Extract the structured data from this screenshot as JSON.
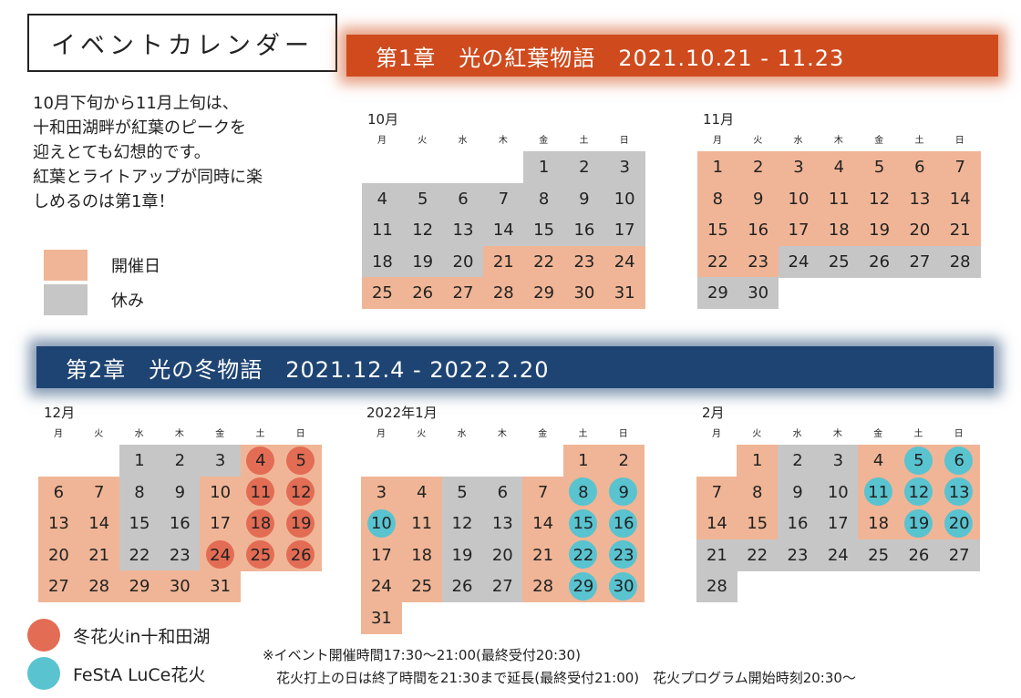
{
  "title": "イベントカレンダー",
  "intro_lines": [
    "10月下旬から11月上旬は、",
    "十和田湖畔が紅葉のピークを",
    "迎えとても幻想的です。",
    "紅葉とライトアップが同時に楽",
    "しめるのは第1章！"
  ],
  "legend": {
    "event": "開催日",
    "off": "休み"
  },
  "colors": {
    "event": "#f0b596",
    "off": "#c6c6c6",
    "winter_fireworks": "#e36c54",
    "festa_fireworks": "#59c3d0",
    "chapter1": "#cf4b1e",
    "chapter2": "#1e4473"
  },
  "weekdays": [
    "月",
    "火",
    "水",
    "木",
    "金",
    "土",
    "日"
  ],
  "chapter1": {
    "label": "第1章　光の紅葉物語　2021.10.21 - 11.23"
  },
  "chapter2": {
    "label": "第2章　光の冬物語　2021.12.4 - 2022.2.20"
  },
  "months": [
    {
      "name": "10月",
      "start": 4,
      "days": 31,
      "event_days": [
        21,
        22,
        23,
        24,
        25,
        26,
        27,
        28,
        29,
        30,
        31
      ],
      "red": [],
      "cyan": []
    },
    {
      "name": "11月",
      "start": 0,
      "days": 30,
      "event_days": [
        1,
        2,
        3,
        4,
        5,
        6,
        7,
        8,
        9,
        10,
        11,
        12,
        13,
        14,
        15,
        16,
        17,
        18,
        19,
        20,
        21,
        22,
        23
      ],
      "red": [],
      "cyan": []
    },
    {
      "name": "12月",
      "start": 2,
      "days": 31,
      "event_days": [
        4,
        5,
        6,
        7,
        10,
        11,
        12,
        13,
        14,
        17,
        18,
        19,
        20,
        21,
        24,
        25,
        26,
        27,
        28,
        29,
        30,
        31
      ],
      "red": [
        4,
        5,
        11,
        12,
        18,
        19,
        24,
        25,
        26
      ],
      "cyan": []
    },
    {
      "name": "2022年1月",
      "start": 5,
      "days": 31,
      "event_days": [
        1,
        2,
        3,
        4,
        7,
        8,
        9,
        10,
        11,
        14,
        15,
        16,
        17,
        18,
        21,
        22,
        23,
        24,
        25,
        28,
        29,
        30,
        31
      ],
      "red": [],
      "cyan": [
        8,
        9,
        10,
        15,
        16,
        22,
        23,
        29,
        30
      ]
    },
    {
      "name": "2月",
      "start": 1,
      "days": 28,
      "event_days": [
        1,
        4,
        5,
        6,
        7,
        8,
        11,
        12,
        13,
        14,
        15,
        18,
        19,
        20
      ],
      "red": [],
      "cyan": [
        5,
        6,
        11,
        12,
        13,
        19,
        20
      ]
    }
  ],
  "dot_legend": {
    "winter": "冬花火in十和田湖",
    "festa": "FeStA LuCe花火"
  },
  "notes": {
    "line1": "※イベント開催時間17:30〜21:00(最終受付20:30)",
    "line2": "花火打上の日は終了時間を21:30まで延長(最終受付21:00)　花火プログラム開始時刻20:30〜"
  }
}
